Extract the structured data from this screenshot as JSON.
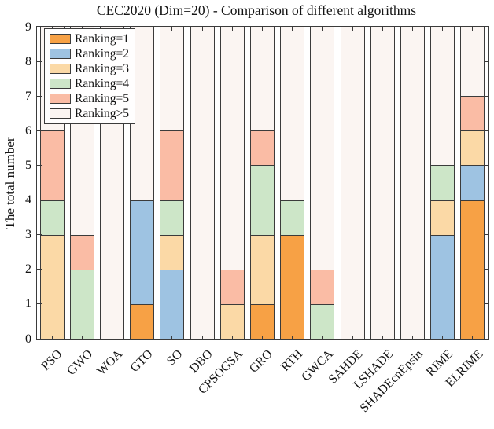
{
  "chart_data": {
    "type": "bar",
    "stacked": true,
    "title": "CEC2020 (Dim=20) - Comparison of different algorithms",
    "ylabel": "The total number",
    "xlabel": "",
    "ylim": [
      0,
      9
    ],
    "yticks": [
      0,
      1,
      2,
      3,
      4,
      5,
      6,
      7,
      8,
      9
    ],
    "grid": false,
    "legend_position": "top-left",
    "axis_color": "#3b3b3b",
    "categories": [
      "PSO",
      "GWO",
      "WOA",
      "GTO",
      "SO",
      "DBO",
      "CPSOGSA",
      "GRO",
      "RTH",
      "GWCA",
      "SAHDE",
      "LSHADE",
      "SHADEcnEpsin",
      "RIME",
      "ELRIME"
    ],
    "series": [
      {
        "name": "Ranking=1",
        "color": "#F7A145",
        "values": [
          0,
          0,
          0,
          1,
          0,
          0,
          0,
          1,
          3,
          0,
          0,
          0,
          0,
          0,
          4
        ]
      },
      {
        "name": "Ranking=2",
        "color": "#9EC3E2",
        "values": [
          0,
          0,
          0,
          3,
          2,
          0,
          0,
          0,
          0,
          0,
          0,
          0,
          0,
          3,
          1
        ]
      },
      {
        "name": "Ranking=3",
        "color": "#FBD9A6",
        "values": [
          3,
          0,
          0,
          0,
          1,
          0,
          1,
          2,
          0,
          0,
          0,
          0,
          0,
          1,
          1
        ]
      },
      {
        "name": "Ranking=4",
        "color": "#CDE6C8",
        "values": [
          1,
          2,
          0,
          0,
          1,
          0,
          0,
          2,
          1,
          1,
          0,
          0,
          0,
          1,
          0
        ]
      },
      {
        "name": "Ranking=5",
        "color": "#FABCA5",
        "values": [
          2,
          1,
          0,
          0,
          2,
          0,
          1,
          1,
          0,
          1,
          0,
          0,
          0,
          0,
          1
        ]
      },
      {
        "name": "Ranking>5",
        "color": "#FBF5F2",
        "values": [
          3,
          6,
          9,
          5,
          3,
          9,
          7,
          3,
          5,
          7,
          9,
          9,
          9,
          4,
          2
        ]
      }
    ]
  }
}
